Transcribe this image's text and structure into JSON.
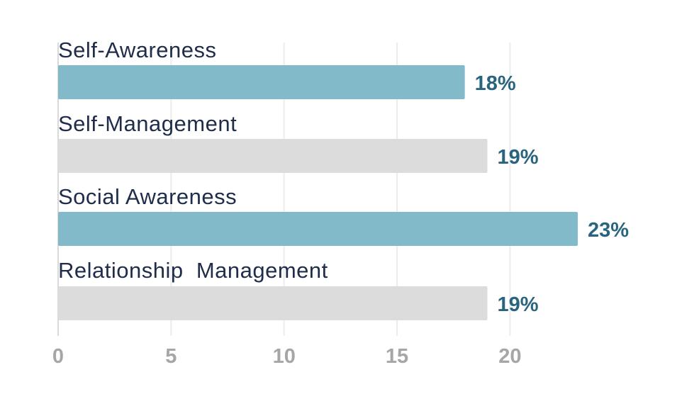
{
  "chart_data": {
    "type": "bar",
    "orientation": "horizontal",
    "categories": [
      "Self-Awareness",
      "Self-Management",
      "Social Awareness",
      "Relationship  Management"
    ],
    "values": [
      18,
      19,
      23,
      19
    ],
    "value_labels": [
      "18%",
      "19%",
      "23%",
      "19%"
    ],
    "bar_colors": [
      "#82bac9",
      "#dcdcdc",
      "#82bac9",
      "#dcdcdc"
    ],
    "xlim": [
      0,
      23
    ],
    "xticks": [
      0,
      5,
      10,
      15,
      20
    ],
    "grid": true,
    "colors": {
      "category_text": "#1f2d4a",
      "value_text": "#2a6580",
      "tick_text": "#a6a6a6"
    }
  }
}
